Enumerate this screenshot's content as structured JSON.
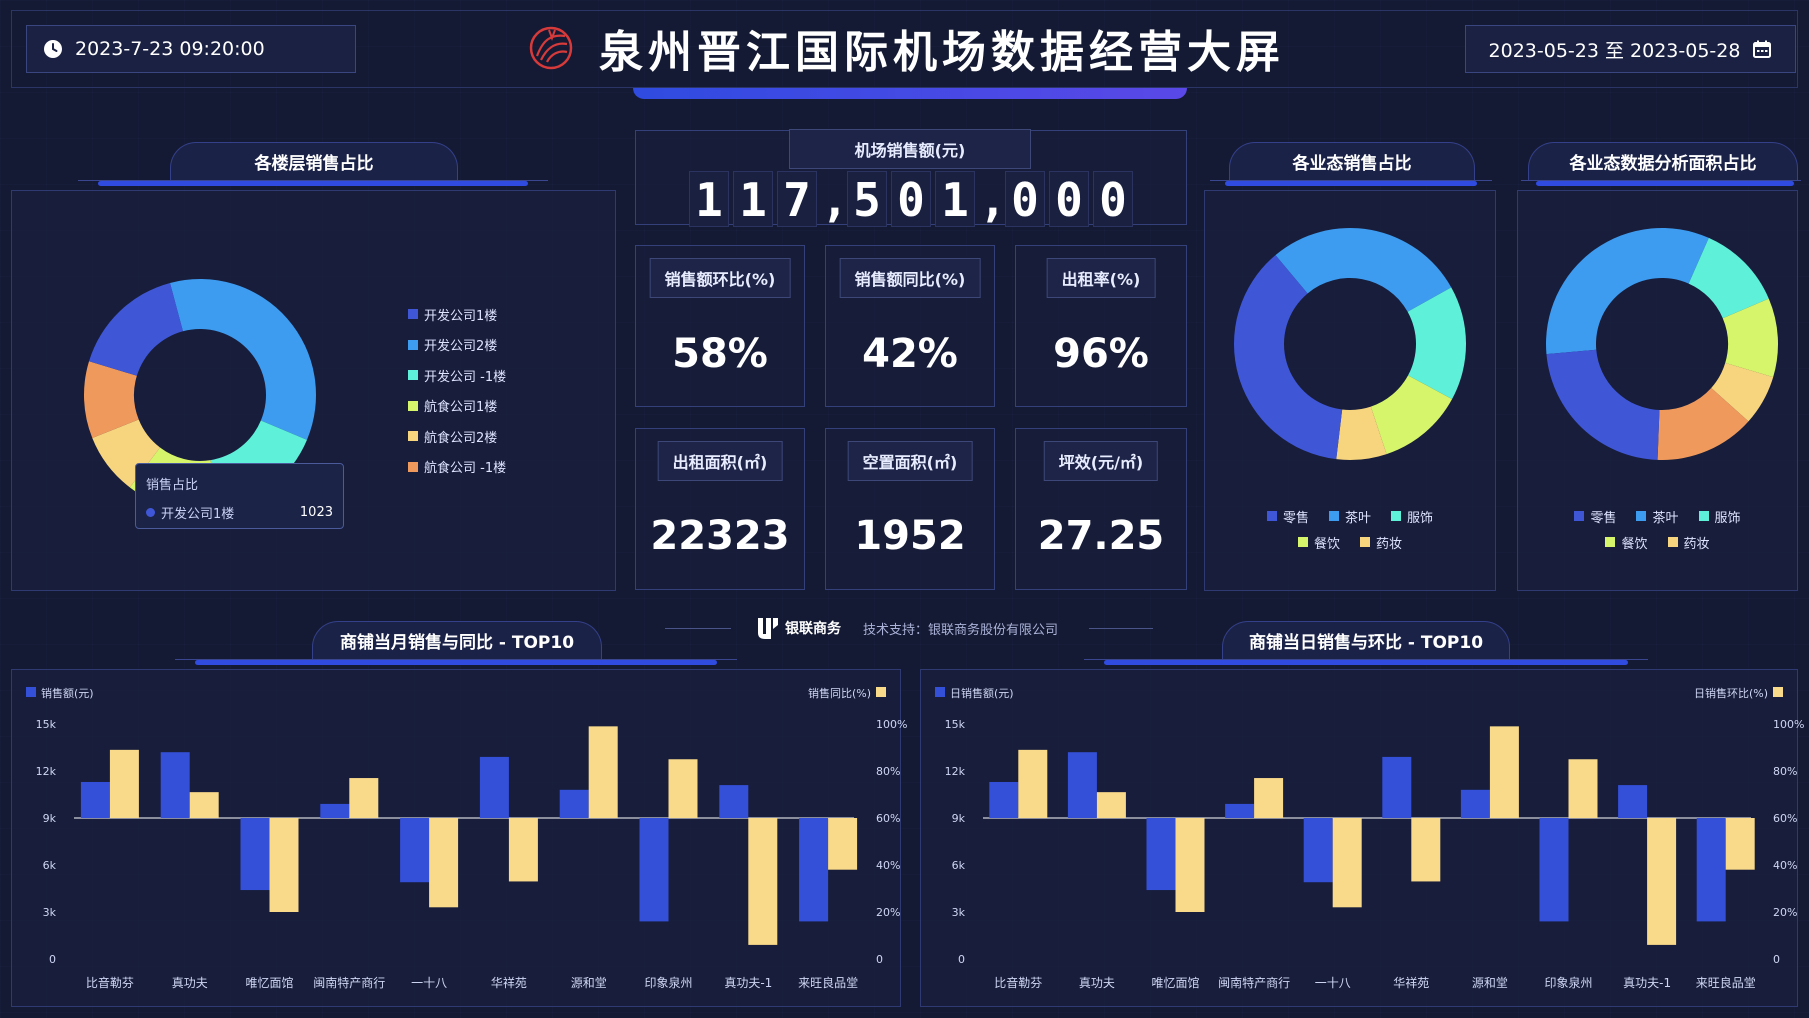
{
  "header": {
    "datetime": "2023-7-23 09:20:00",
    "title": "泉州晋江国际机场数据经营大屏",
    "date_range": "2023-05-23 至 2023-05-28"
  },
  "floor_panel": {
    "title": "各楼层销售占比",
    "tooltip": {
      "title": "销售占比",
      "name": "开发公司1楼",
      "value": "1023"
    }
  },
  "sales_total": {
    "label": "机场销售额(元)",
    "digits": [
      "1",
      "1",
      "7",
      ",",
      "5",
      "0",
      "1",
      ",",
      "0",
      "0",
      "0"
    ]
  },
  "stats": [
    {
      "label": "销售额环比(%)",
      "value": "58%"
    },
    {
      "label": "销售额同比(%)",
      "value": "42%"
    },
    {
      "label": "出租率(%)",
      "value": "96%"
    },
    {
      "label": "出租面积(㎡)",
      "value": "22323"
    },
    {
      "label": "空置面积(㎡)",
      "value": "1952"
    },
    {
      "label": "坪效(元/㎡)",
      "value": "27.25"
    }
  ],
  "footer": {
    "logo_text": "银联商务",
    "support": "技术支持：银联商务股份有限公司"
  },
  "business_panel": {
    "title": "各业态销售占比"
  },
  "area_panel": {
    "title": "各业态数据分析面积占比"
  },
  "monthly_panel": {
    "title": "商铺当月销售与同比 - TOP10",
    "left_legend": "销售额(元)",
    "right_legend": "销售同比(%)"
  },
  "daily_panel": {
    "title": "商铺当日销售与环比 - TOP10",
    "left_legend": "日销售额(元)",
    "right_legend": "日销售环比(%)"
  },
  "colors": {
    "blue_dark": "#3f57d6",
    "blue": "#3d9bf0",
    "cyan": "#5ef0d8",
    "lime": "#d7f56a",
    "yellow": "#f7d57e",
    "orange": "#ef9a5c",
    "bar_blue": "#3450d8",
    "bar_yellow": "#f9d98a"
  },
  "chart_data": [
    {
      "type": "pie",
      "donut": true,
      "categories": [
        "开发公司1楼",
        "开发公司2楼",
        "开发公司 -1楼",
        "航食公司1楼",
        "航食公司2楼",
        "航食公司 -1楼"
      ],
      "values": [
        15,
        33,
        15,
        12,
        8,
        10
      ],
      "colors": [
        "#3f57d6",
        "#3d9bf0",
        "#5ef0d8",
        "#d7f56a",
        "#f7d57e",
        "#ef9a5c"
      ],
      "legend": "right"
    },
    {
      "type": "pie",
      "donut": true,
      "categories": [
        "零售",
        "茶叶",
        "服饰",
        "餐饮",
        "药妆"
      ],
      "values": [
        37,
        28,
        16,
        12,
        7
      ],
      "colors": [
        "#3f57d6",
        "#3d9bf0",
        "#5ef0d8",
        "#d7f56a",
        "#f7d57e"
      ],
      "order": [
        "茶叶",
        "服饰",
        "餐饮",
        "药妆",
        "零售"
      ],
      "legend": "bottom"
    },
    {
      "type": "pie",
      "donut": true,
      "categories": [
        "零售",
        "茶叶",
        "服饰",
        "餐饮",
        "药妆"
      ],
      "values": [
        23,
        33,
        12,
        11,
        7
      ],
      "extra_segment": {
        "color": "#ef9a5c",
        "value": 14
      },
      "colors": [
        "#3f57d6",
        "#3d9bf0",
        "#5ef0d8",
        "#d7f56a",
        "#f7d57e"
      ],
      "legend": "bottom"
    },
    {
      "type": "bar",
      "categories": [
        "比音勒芬",
        "真功夫",
        "唯忆面馆",
        "闽南特产商行",
        "一十八",
        "华祥苑",
        "源和堂",
        "印象泉州",
        "真功夫-1",
        "来旺良品堂"
      ],
      "series": [
        {
          "name": "销售额(元)",
          "axis": "left",
          "values": [
            11300,
            13200,
            4400,
            9900,
            4900,
            12900,
            10800,
            2400,
            11100,
            2400
          ]
        },
        {
          "name": "销售同比(%)",
          "axis": "right",
          "values": [
            89,
            71,
            20,
            77,
            22,
            33,
            99,
            85,
            6,
            38
          ]
        }
      ],
      "yleft_ticks": [
        "0",
        "3k",
        "6k",
        "9k",
        "12k",
        "15k"
      ],
      "yright_ticks": [
        "0",
        "20%",
        "40%",
        "60%",
        "80%",
        "100%"
      ],
      "ylim_left": [
        0,
        15000
      ],
      "ylim_right": [
        0,
        100
      ],
      "baseline": 9000
    },
    {
      "type": "bar",
      "categories": [
        "比音勒芬",
        "真功夫",
        "唯忆面馆",
        "闽南特产商行",
        "一十八",
        "华祥苑",
        "源和堂",
        "印象泉州",
        "真功夫-1",
        "来旺良品堂"
      ],
      "series": [
        {
          "name": "日销售额(元)",
          "axis": "left",
          "values": [
            11300,
            13200,
            4400,
            9900,
            4900,
            12900,
            10800,
            2400,
            11100,
            2400
          ]
        },
        {
          "name": "日销售环比(%)",
          "axis": "right",
          "values": [
            89,
            71,
            20,
            77,
            22,
            33,
            99,
            85,
            6,
            38
          ]
        }
      ],
      "yleft_ticks": [
        "0",
        "3k",
        "6k",
        "9k",
        "12k",
        "15k"
      ],
      "yright_ticks": [
        "0",
        "20%",
        "40%",
        "60%",
        "80%",
        "100%"
      ],
      "ylim_left": [
        0,
        15000
      ],
      "ylim_right": [
        0,
        100
      ],
      "baseline": 9000
    }
  ]
}
